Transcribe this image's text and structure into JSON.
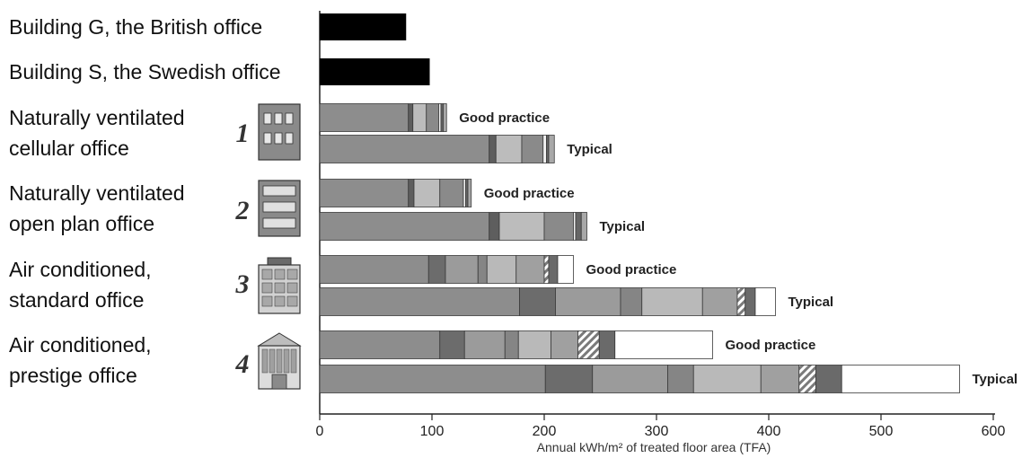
{
  "chart_data": {
    "type": "bar",
    "orientation": "horizontal",
    "stacked": true,
    "xlabel": "Annual kWh/m² of treated floor area (TFA)",
    "xlim": [
      0,
      600
    ],
    "xticks": [
      0,
      100,
      200,
      300,
      400,
      500,
      600
    ],
    "grid": false,
    "buildings": [
      {
        "label": "Building G, the British office",
        "total": 77
      },
      {
        "label": "Building S, the Swedish office",
        "total": 98
      }
    ],
    "categories": [
      {
        "number": "1",
        "label_lines": [
          "Naturally ventilated",
          "cellular office"
        ],
        "icon": "cellular-office-building-icon",
        "bars": [
          {
            "label": "Good practice",
            "boundaries": [
              0,
              79,
              83,
              95,
              106,
              108,
              110,
              113
            ]
          },
          {
            "label": "Typical",
            "boundaries": [
              0,
              151,
              157,
              180,
              199,
              202,
              204,
              209
            ]
          }
        ]
      },
      {
        "number": "2",
        "label_lines": [
          "Naturally ventilated",
          "open plan office"
        ],
        "icon": "open-plan-office-building-icon",
        "bars": [
          {
            "label": "Good practice",
            "boundaries": [
              0,
              79,
              84,
              107,
              128,
              130,
              132,
              135
            ]
          },
          {
            "label": "Typical",
            "boundaries": [
              0,
              151,
              160,
              200,
              226,
              228,
              233,
              238
            ]
          }
        ]
      },
      {
        "number": "3",
        "label_lines": [
          "Air conditioned,",
          "standard office"
        ],
        "icon": "standard-office-building-icon",
        "bars": [
          {
            "label": "Good practice",
            "boundaries": [
              0,
              97,
              112,
              141,
              149,
              175,
              200,
              204,
              212,
              226
            ]
          },
          {
            "label": "Typical",
            "boundaries": [
              0,
              178,
              210,
              268,
              287,
              341,
              372,
              379,
              388,
              406
            ]
          }
        ]
      },
      {
        "number": "4",
        "label_lines": [
          "Air conditioned,",
          "prestige office"
        ],
        "icon": "prestige-office-building-icon",
        "bars": [
          {
            "label": "Good practice",
            "boundaries": [
              0,
              107,
              129,
              165,
              177,
              206,
              230,
              249,
              263,
              350
            ]
          },
          {
            "label": "Typical",
            "boundaries": [
              0,
              201,
              243,
              310,
              333,
              393,
              427,
              442,
              465,
              570
            ]
          }
        ]
      }
    ],
    "segment_colors": [
      "#8d8d8d",
      "#6c6c6c",
      "#9b9b9b",
      "#bdbdbd",
      "#888888",
      "#f0f0f0",
      "#5c5c5c",
      "#ffffff"
    ],
    "building_bar_color": "#000000"
  }
}
